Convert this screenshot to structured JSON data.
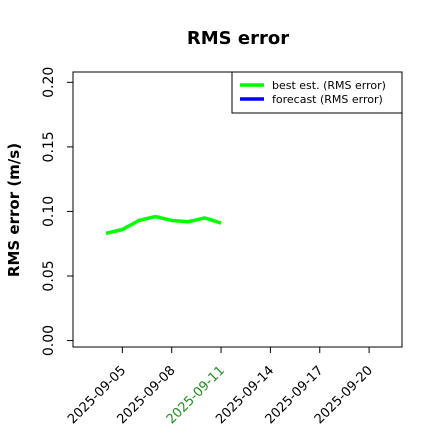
{
  "chart_data": {
    "type": "line",
    "title": "RMS error",
    "y_label": "RMS error (m/s)",
    "x": [
      "2025-09-04",
      "2025-09-05",
      "2025-09-06",
      "2025-09-07",
      "2025-09-08",
      "2025-09-09",
      "2025-09-10",
      "2025-09-11"
    ],
    "series": [
      {
        "name": "best est. (RMS error)",
        "color": "#00ff00",
        "values": [
          0.083,
          0.086,
          0.093,
          0.096,
          0.093,
          0.092,
          0.095,
          0.091
        ]
      },
      {
        "name": "forecast (RMS error)",
        "color": "#0000ff",
        "values": [
          null,
          null,
          null,
          null,
          null,
          null,
          null,
          null
        ]
      }
    ],
    "xlim": [
      "2025-09-02",
      "2025-09-22"
    ],
    "xticks": [
      "2025-09-05",
      "2025-09-08",
      "2025-09-11",
      "2025-09-14",
      "2025-09-17",
      "2025-09-20"
    ],
    "highlight_xtick": {
      "index": 2,
      "color": "#228b22"
    },
    "ylim": [
      -0.005,
      0.208
    ],
    "yticks": [
      {
        "value": 0,
        "label": "0.00"
      },
      0.05,
      {
        "value": 0.1,
        "label": "0.10"
      },
      0.15,
      {
        "value": 0.2,
        "label": "0.20"
      }
    ],
    "legend": "upper right"
  }
}
